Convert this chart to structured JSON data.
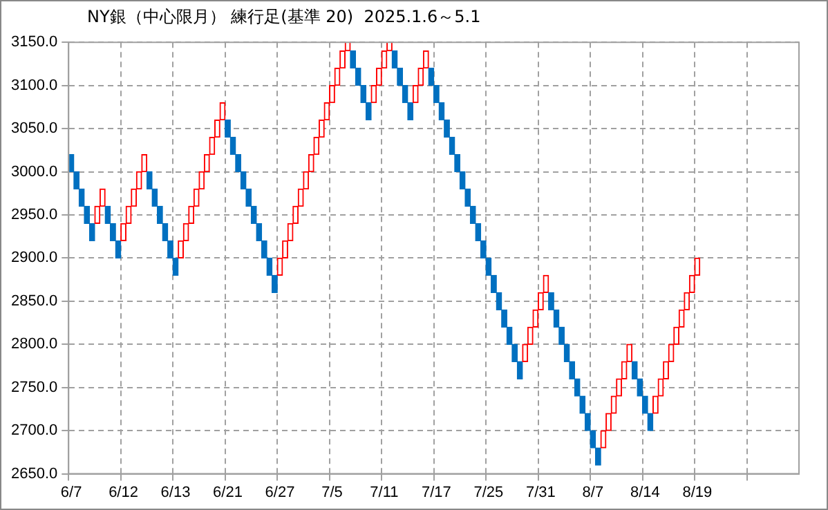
{
  "chart_data": {
    "type": "bar",
    "title": "NY銀（中心限月） 練行足(基準 20)  2025.1.6～5.1",
    "categories": [
      "6/7",
      null,
      null,
      null,
      null,
      null,
      null,
      null,
      null,
      null,
      "6/12",
      null,
      null,
      null,
      null,
      null,
      null,
      null,
      null,
      null,
      "6/13",
      null,
      null,
      null,
      null,
      null,
      null,
      null,
      null,
      null,
      "6/21",
      null,
      null,
      null,
      null,
      null,
      null,
      null,
      null,
      null,
      "6/27",
      null,
      null,
      null,
      null,
      null,
      null,
      null,
      null,
      null,
      "7/5",
      null,
      null,
      null,
      null,
      null,
      null,
      null,
      null,
      null,
      "7/11",
      null,
      null,
      null,
      null,
      null,
      null,
      null,
      null,
      null,
      "7/17",
      null,
      null,
      null,
      null,
      null,
      null,
      null,
      null,
      null,
      "7/25",
      null,
      null,
      null,
      null,
      null,
      null,
      null,
      null,
      null,
      "7/31",
      null,
      null,
      null,
      null,
      null,
      null,
      null,
      null,
      null,
      "8/7",
      null,
      null,
      null,
      null,
      null,
      null,
      null,
      null,
      null,
      "8/14",
      null,
      null,
      null,
      null,
      null,
      null,
      null,
      null,
      null,
      "8/19",
      null,
      null,
      null,
      null,
      null,
      null,
      null,
      null,
      null,
      null,
      null,
      null,
      null,
      null,
      null,
      null,
      null,
      null,
      null
    ],
    "base": [
      3020,
      3000,
      2980,
      2960,
      2940,
      2940,
      2960,
      2960,
      2940,
      2920,
      2920,
      2940,
      2960,
      2980,
      3000,
      3000,
      2980,
      2960,
      2940,
      2920,
      2900,
      2900,
      2920,
      2940,
      2960,
      2980,
      3000,
      3020,
      3040,
      3060,
      3060,
      3040,
      3020,
      3000,
      2980,
      2960,
      2940,
      2920,
      2900,
      2880,
      2880,
      2900,
      2920,
      2940,
      2960,
      2980,
      3000,
      3020,
      3040,
      3060,
      3080,
      3100,
      3120,
      3140,
      3140,
      3120,
      3100,
      3080,
      3080,
      3100,
      3120,
      3140,
      3140,
      3120,
      3100,
      3080,
      3080,
      3100,
      3120,
      3120,
      3100,
      3080,
      3060,
      3040,
      3020,
      3000,
      2980,
      2960,
      2940,
      2920,
      2900,
      2880,
      2860,
      2840,
      2820,
      2800,
      2780,
      2780,
      2800,
      2820,
      2840,
      2860,
      2860,
      2840,
      2820,
      2800,
      2780,
      2760,
      2740,
      2720,
      2700,
      2680,
      2680,
      2700,
      2720,
      2740,
      2760,
      2780,
      2780,
      2760,
      2740,
      2720,
      2720,
      2740,
      2760,
      2780,
      2800,
      2820,
      2840,
      2860,
      2880,
      null,
      null,
      null,
      null,
      null,
      null,
      null,
      null,
      null,
      null,
      null,
      null,
      null,
      null,
      null,
      null,
      null,
      null,
      null
    ],
    "values": [
      -20,
      -20,
      -20,
      -20,
      -20,
      20,
      20,
      -20,
      -20,
      -20,
      20,
      20,
      20,
      20,
      20,
      -20,
      -20,
      -20,
      -20,
      -20,
      -20,
      20,
      20,
      20,
      20,
      20,
      20,
      20,
      20,
      20,
      -20,
      -20,
      -20,
      -20,
      -20,
      -20,
      -20,
      -20,
      -20,
      -20,
      20,
      20,
      20,
      20,
      20,
      20,
      20,
      20,
      20,
      20,
      20,
      20,
      20,
      20,
      -20,
      -20,
      -20,
      -20,
      20,
      20,
      20,
      20,
      -20,
      -20,
      -20,
      -20,
      20,
      20,
      20,
      -20,
      -20,
      -20,
      -20,
      -20,
      -20,
      -20,
      -20,
      -20,
      -20,
      -20,
      -20,
      -20,
      -20,
      -20,
      -20,
      -20,
      -20,
      20,
      20,
      20,
      20,
      20,
      -20,
      -20,
      -20,
      -20,
      -20,
      -20,
      -20,
      -20,
      -20,
      -20,
      20,
      20,
      20,
      20,
      20,
      20,
      -20,
      -20,
      -20,
      -20,
      20,
      20,
      20,
      20,
      20,
      20,
      20,
      20,
      20,
      null,
      null,
      null,
      null,
      null,
      null,
      null,
      null,
      null,
      null,
      null,
      null,
      null,
      null,
      null,
      null,
      null,
      null,
      null
    ],
    "colors": [
      "#0070c0",
      "#0070c0",
      "#0070c0",
      "#0070c0",
      "#0070c0",
      "#ff0000",
      "#ff0000",
      "#0070c0",
      "#0070c0",
      "#0070c0",
      "#ff0000",
      "#ff0000",
      "#ff0000",
      "#ff0000",
      "#ff0000",
      "#0070c0",
      "#0070c0",
      "#0070c0",
      "#0070c0",
      "#0070c0",
      "#0070c0",
      "#ff0000",
      "#ff0000",
      "#ff0000",
      "#ff0000",
      "#ff0000",
      "#ff0000",
      "#ff0000",
      "#ff0000",
      "#ff0000",
      "#0070c0",
      "#0070c0",
      "#0070c0",
      "#0070c0",
      "#0070c0",
      "#0070c0",
      "#0070c0",
      "#0070c0",
      "#0070c0",
      "#0070c0",
      "#ff0000",
      "#ff0000",
      "#ff0000",
      "#ff0000",
      "#ff0000",
      "#ff0000",
      "#ff0000",
      "#ff0000",
      "#ff0000",
      "#ff0000",
      "#ff0000",
      "#ff0000",
      "#ff0000",
      "#ff0000",
      "#0070c0",
      "#0070c0",
      "#0070c0",
      "#0070c0",
      "#ff0000",
      "#ff0000",
      "#ff0000",
      "#ff0000",
      "#0070c0",
      "#0070c0",
      "#0070c0",
      "#0070c0",
      "#ff0000",
      "#ff0000",
      "#ff0000",
      "#0070c0",
      "#0070c0",
      "#0070c0",
      "#0070c0",
      "#0070c0",
      "#0070c0",
      "#0070c0",
      "#0070c0",
      "#0070c0",
      "#0070c0",
      "#0070c0",
      "#0070c0",
      "#0070c0",
      "#0070c0",
      "#0070c0",
      "#0070c0",
      "#0070c0",
      "#0070c0",
      "#ff0000",
      "#ff0000",
      "#ff0000",
      "#ff0000",
      "#ff0000",
      "#0070c0",
      "#0070c0",
      "#0070c0",
      "#0070c0",
      "#0070c0",
      "#0070c0",
      "#0070c0",
      "#0070c0",
      "#0070c0",
      "#0070c0",
      "#ff0000",
      "#ff0000",
      "#ff0000",
      "#ff0000",
      "#ff0000",
      "#ff0000",
      "#0070c0",
      "#0070c0",
      "#0070c0",
      "#0070c0",
      "#ff0000",
      "#ff0000",
      "#ff0000",
      "#ff0000",
      "#ff0000",
      "#ff0000",
      "#ff0000",
      "#ff0000",
      "#ff0000",
      null,
      null,
      null,
      null,
      null,
      null,
      null,
      null,
      null,
      null,
      null,
      null,
      null,
      null,
      null,
      null,
      null,
      null,
      null
    ],
    "ylim": [
      2650,
      3150
    ],
    "yticks": [
      {
        "value": 2650,
        "label": "2650.0"
      },
      {
        "value": 2700,
        "label": "2700.0"
      },
      {
        "value": 2750,
        "label": "2750.0"
      },
      {
        "value": 2800,
        "label": "2800.0"
      },
      {
        "value": 2850,
        "label": "2850.0"
      },
      {
        "value": 2900,
        "label": "2900.0"
      },
      {
        "value": 2950,
        "label": "2950.0"
      },
      {
        "value": 3000,
        "label": "3000.0"
      },
      {
        "value": 3050,
        "label": "3050.0"
      },
      {
        "value": 3100,
        "label": "3100.0"
      },
      {
        "value": 3150,
        "label": "3150.0"
      }
    ],
    "grid": true,
    "legend": false
  }
}
